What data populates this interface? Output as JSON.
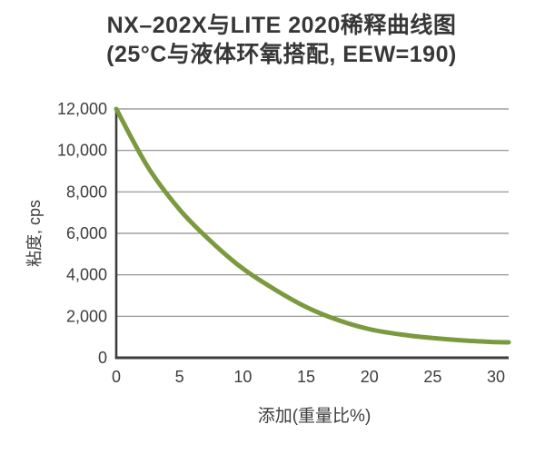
{
  "title": {
    "line1": "NX–202X与LITE 2020稀释曲线图",
    "line2": "(25°C与液体环氧搭配, EEW=190)"
  },
  "chart_data": {
    "type": "line",
    "title": "NX–202X与LITE 2020稀释曲线图 (25°C与液体环氧搭配, EEW=190)",
    "xlabel": "添加(重量比%)",
    "ylabel": "粘度, cps",
    "xlim": [
      0,
      31
    ],
    "ylim": [
      0,
      12000
    ],
    "x_ticks": [
      0,
      5,
      10,
      15,
      20,
      25,
      30
    ],
    "x_tick_labels": [
      "0",
      "5",
      "10",
      "15",
      "20",
      "25",
      "30"
    ],
    "y_ticks": [
      0,
      2000,
      4000,
      6000,
      8000,
      10000,
      12000
    ],
    "y_tick_labels": [
      "0",
      "2,000",
      "4,000",
      "6,000",
      "8,000",
      "10,000",
      "12,000"
    ],
    "grid": "horizontal-only",
    "legend": "none",
    "series": [
      {
        "name": "NX-202X稀释曲线",
        "color": "#7b9a3e",
        "x": [
          0,
          2.5,
          5,
          7.5,
          10,
          12.5,
          15,
          17.5,
          20,
          22.5,
          25,
          27.5,
          30,
          31
        ],
        "values": [
          12000,
          9200,
          7150,
          5600,
          4300,
          3300,
          2450,
          1820,
          1380,
          1120,
          950,
          830,
          755,
          745
        ]
      }
    ],
    "values_at_x_ticks": [
      12000,
      7150,
      4300,
      2450,
      1380,
      950,
      755
    ]
  },
  "style": {
    "curve_color": "#7b9a3e",
    "gridline_color": "#8c8c8c",
    "axis_color": "#3d3d3d",
    "text_color": "#3d3d3d",
    "background": "#ffffff"
  }
}
